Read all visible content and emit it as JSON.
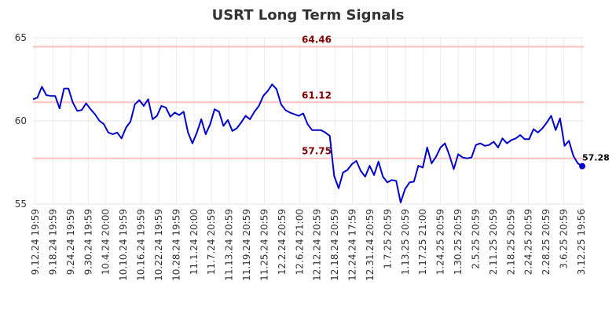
{
  "chart_data": {
    "type": "line",
    "title": "USRT Long Term Signals",
    "xlabel": "",
    "ylabel": "",
    "ylim": [
      55,
      65
    ],
    "yticks": [
      55,
      60,
      65
    ],
    "grid": true,
    "line_color": "#0000cc",
    "level_color": "#ffc0c0",
    "level_label_color": "#800000",
    "xtick_labels": [
      "9.12.24 19:59",
      "9.18.24 19:59",
      "9.24.24 19:59",
      "9.30.24 19:59",
      "10.4.24 20:00",
      "10.10.24 19:59",
      "10.16.24 19:59",
      "10.22.24 19:59",
      "10.28.24 19:59",
      "11.1.24 20:00",
      "11.7.24 20:59",
      "11.13.24 20:59",
      "11.19.24 20:59",
      "11.25.24 20:59",
      "12.2.24 20:59",
      "12.6.24 21:00",
      "12.12.24 20:59",
      "12.18.24 20:59",
      "12.24.24 17:59",
      "12.31.24 20:59",
      "1.7.25 20:59",
      "1.13.25 20:59",
      "1.17.25 21:00",
      "1.24.25 20:59",
      "1.30.25 20:59",
      "2.5.25 20:59",
      "2.11.25 20:59",
      "2.18.25 20:59",
      "2.24.25 20:59",
      "2.28.25 20:59",
      "3.6.25 20:59",
      "3.12.25 19:56"
    ],
    "levels": [
      {
        "value": 64.46,
        "label": "64.46"
      },
      {
        "value": 61.12,
        "label": "61.12"
      },
      {
        "value": 57.75,
        "label": "57.75"
      }
    ],
    "last_value_label": "57.28",
    "values": [
      61.3,
      61.4,
      62.05,
      61.55,
      61.5,
      61.5,
      60.75,
      61.95,
      61.95,
      61.1,
      60.6,
      60.65,
      61.05,
      60.7,
      60.4,
      60.0,
      59.8,
      59.3,
      59.2,
      59.3,
      58.95,
      59.6,
      59.95,
      61.0,
      61.25,
      60.9,
      61.3,
      60.1,
      60.3,
      60.9,
      60.8,
      60.25,
      60.5,
      60.35,
      60.55,
      59.3,
      58.65,
      59.3,
      60.1,
      59.2,
      59.8,
      60.7,
      60.55,
      59.7,
      60.05,
      59.4,
      59.55,
      59.9,
      60.3,
      60.1,
      60.55,
      60.9,
      61.5,
      61.8,
      62.2,
      61.9,
      61.0,
      60.65,
      60.5,
      60.4,
      60.3,
      60.45,
      59.8,
      59.45,
      59.45,
      59.45,
      59.3,
      59.1,
      56.7,
      55.95,
      56.9,
      57.05,
      57.4,
      57.6,
      57.0,
      56.65,
      57.3,
      56.75,
      57.55,
      56.65,
      56.3,
      56.45,
      56.4,
      55.1,
      55.9,
      56.3,
      56.35,
      57.3,
      57.2,
      58.4,
      57.45,
      57.85,
      58.4,
      58.65,
      57.95,
      57.1,
      58.0,
      57.8,
      57.75,
      57.8,
      58.55,
      58.65,
      58.5,
      58.55,
      58.75,
      58.4,
      58.95,
      58.65,
      58.85,
      58.95,
      59.15,
      58.9,
      58.9,
      59.5,
      59.3,
      59.55,
      59.9,
      60.3,
      59.45,
      60.15,
      58.5,
      58.8,
      57.9,
      57.45,
      57.28
    ]
  }
}
